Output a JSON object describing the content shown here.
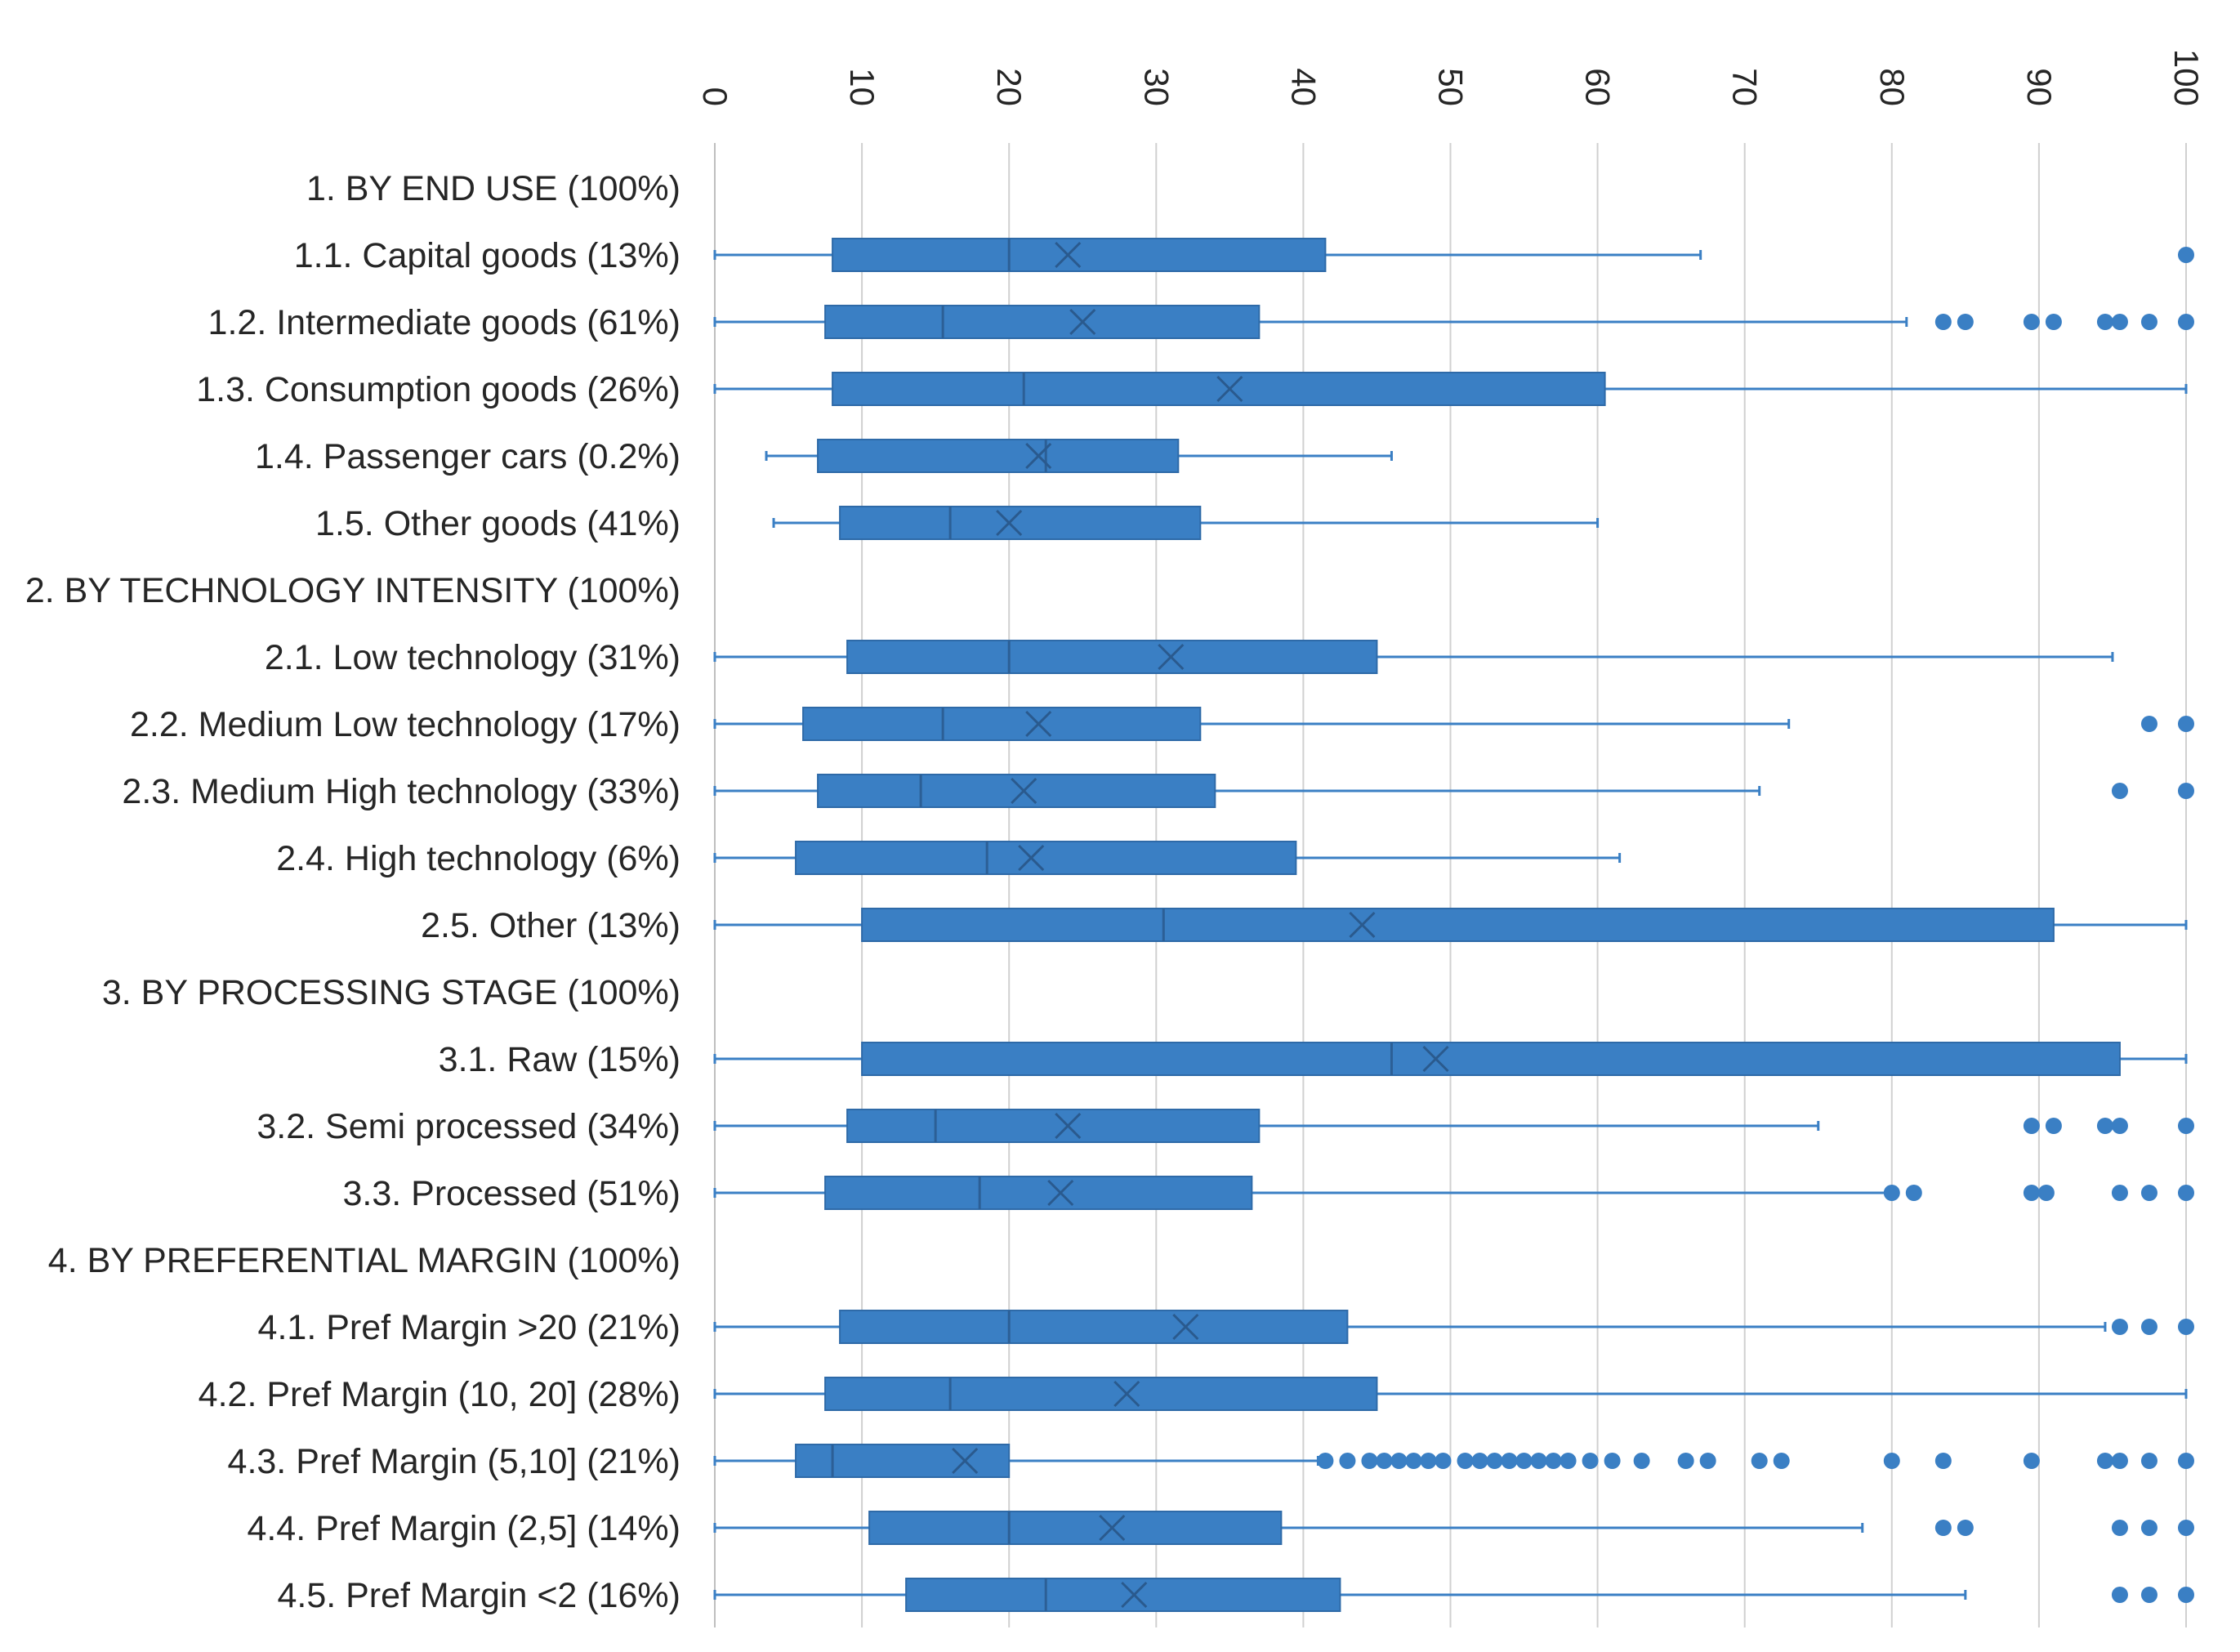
{
  "chart_data": {
    "type": "box",
    "orientation": "horizontal",
    "xlim": [
      0,
      100
    ],
    "x_ticks": [
      "0",
      "10",
      "20",
      "30",
      "40",
      "50",
      "60",
      "70",
      "80",
      "90",
      "100"
    ],
    "grid": true,
    "color": "#3a7fc4",
    "categories": [
      {
        "label": "1. BY END USE (100%)",
        "header": true
      },
      {
        "label": "1.1. Capital goods (13%)",
        "whisker_low": 0,
        "q1": 8,
        "median": 20,
        "q3": 41.5,
        "whisker_high": 67,
        "mean": 24,
        "outliers": [
          100
        ]
      },
      {
        "label": "1.2. Intermediate goods (61%)",
        "whisker_low": 0,
        "q1": 7.5,
        "median": 15.5,
        "q3": 37,
        "whisker_high": 81,
        "mean": 25,
        "outliers": [
          83.5,
          85,
          89.5,
          91,
          94.5,
          95.5,
          97.5,
          100
        ]
      },
      {
        "label": "1.3. Consumption goods (26%)",
        "whisker_low": 0,
        "q1": 8,
        "median": 21,
        "q3": 60.5,
        "whisker_high": 100,
        "mean": 35,
        "outliers": []
      },
      {
        "label": "1.4. Passenger cars (0.2%)",
        "whisker_low": 3.5,
        "q1": 7,
        "median": 22.5,
        "q3": 31.5,
        "whisker_high": 46,
        "mean": 22,
        "outliers": []
      },
      {
        "label": "1.5. Other goods (41%)",
        "whisker_low": 4,
        "q1": 8.5,
        "median": 16,
        "q3": 33,
        "whisker_high": 60,
        "mean": 20,
        "outliers": []
      },
      {
        "label": "2. BY TECHNOLOGY INTENSITY (100%)",
        "header": true
      },
      {
        "label": "2.1. Low technology (31%)",
        "whisker_low": 0,
        "q1": 9,
        "median": 20,
        "q3": 45,
        "whisker_high": 95,
        "mean": 31,
        "outliers": []
      },
      {
        "label": "2.2. Medium Low technology (17%)",
        "whisker_low": 0,
        "q1": 6,
        "median": 15.5,
        "q3": 33,
        "whisker_high": 73,
        "mean": 22,
        "outliers": [
          97.5,
          100
        ]
      },
      {
        "label": "2.3. Medium High technology (33%)",
        "whisker_low": 0,
        "q1": 7,
        "median": 14,
        "q3": 34,
        "whisker_high": 71,
        "mean": 21,
        "outliers": [
          95.5,
          100
        ]
      },
      {
        "label": "2.4. High technology (6%)",
        "whisker_low": 0,
        "q1": 5.5,
        "median": 18.5,
        "q3": 39.5,
        "whisker_high": 61.5,
        "mean": 21.5,
        "outliers": []
      },
      {
        "label": "2.5. Other (13%)",
        "whisker_low": 0,
        "q1": 10,
        "median": 30.5,
        "q3": 91,
        "whisker_high": 100,
        "mean": 44,
        "outliers": []
      },
      {
        "label": "3. BY PROCESSING STAGE (100%)",
        "header": true
      },
      {
        "label": "3.1. Raw (15%)",
        "whisker_low": 0,
        "q1": 10,
        "median": 46,
        "q3": 95.5,
        "whisker_high": 100,
        "mean": 49,
        "outliers": []
      },
      {
        "label": "3.2. Semi processed (34%)",
        "whisker_low": 0,
        "q1": 9,
        "median": 15,
        "q3": 37,
        "whisker_high": 75,
        "mean": 24,
        "outliers": [
          89.5,
          91,
          94.5,
          95.5,
          100
        ]
      },
      {
        "label": "3.3. Processed (51%)",
        "whisker_low": 0,
        "q1": 7.5,
        "median": 18,
        "q3": 36.5,
        "whisker_high": 80,
        "mean": 23.5,
        "outliers": [
          80,
          81.5,
          89.5,
          90.5,
          95.5,
          97.5,
          100
        ]
      },
      {
        "label": "4. BY PREFERENTIAL MARGIN (100%)",
        "header": true
      },
      {
        "label": "4.1. Pref Margin >20 (21%)",
        "whisker_low": 0,
        "q1": 8.5,
        "median": 20,
        "q3": 43,
        "whisker_high": 94.5,
        "mean": 32,
        "outliers": [
          95.5,
          97.5,
          100
        ]
      },
      {
        "label": "4.2. Pref Margin (10, 20] (28%)",
        "whisker_low": 0,
        "q1": 7.5,
        "median": 16,
        "q3": 45,
        "whisker_high": 100,
        "mean": 28,
        "outliers": []
      },
      {
        "label": "4.3. Pref Margin (5,10] (21%)",
        "whisker_low": 0,
        "q1": 5.5,
        "median": 8,
        "q3": 20,
        "whisker_high": 41,
        "mean": 17,
        "outliers": [
          41.5,
          43,
          44.5,
          45.5,
          46.5,
          47.5,
          48.5,
          49.5,
          51,
          52,
          53,
          54,
          55,
          56,
          57,
          58,
          59.5,
          61,
          63,
          66,
          67.5,
          71,
          72.5,
          80,
          83.5,
          89.5,
          94.5,
          95.5,
          97.5,
          100
        ]
      },
      {
        "label": "4.4. Pref Margin (2,5] (14%)",
        "whisker_low": 0,
        "q1": 10.5,
        "median": 20,
        "q3": 38.5,
        "whisker_high": 78,
        "mean": 27,
        "outliers": [
          83.5,
          85,
          95.5,
          97.5,
          100
        ]
      },
      {
        "label": "4.5. Pref Margin <2 (16%)",
        "whisker_low": 0,
        "q1": 13,
        "median": 22.5,
        "q3": 42.5,
        "whisker_high": 85,
        "mean": 28.5,
        "outliers": [
          95.5,
          97.5,
          100
        ]
      }
    ]
  }
}
